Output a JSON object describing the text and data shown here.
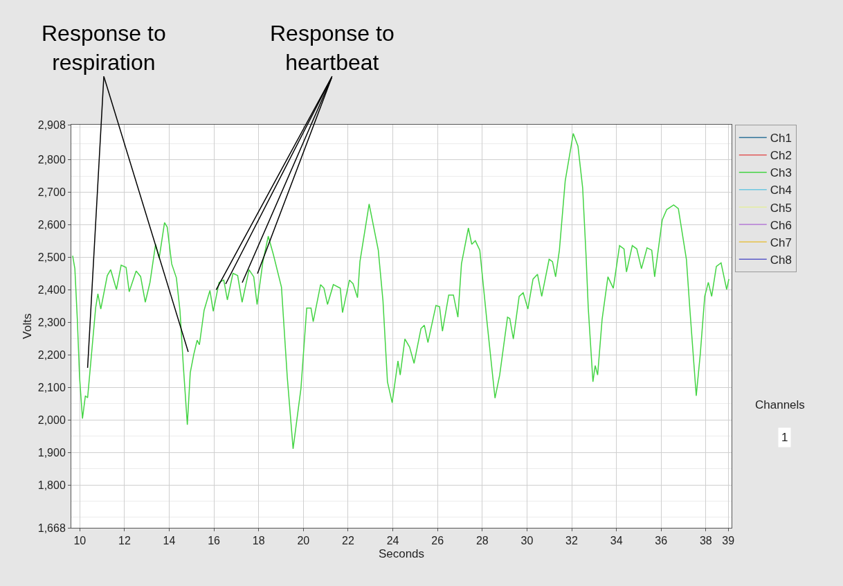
{
  "chart_data": {
    "type": "line",
    "xlabel": "Seconds",
    "ylabel": "Volts",
    "xlim": [
      9.62,
      39.15
    ],
    "xticks": [
      10,
      12,
      14,
      16,
      18,
      20,
      22,
      24,
      26,
      28,
      30,
      32,
      34,
      36,
      38,
      39
    ],
    "ylim": [
      1668,
      2908
    ],
    "yticks": [
      {
        "value": 1668,
        "label": "1,668"
      },
      {
        "value": 1800,
        "label": "1,800"
      },
      {
        "value": 1900,
        "label": "1,900"
      },
      {
        "value": 2000,
        "label": "2,000"
      },
      {
        "value": 2100,
        "label": "2,100"
      },
      {
        "value": 2200,
        "label": "2,200"
      },
      {
        "value": 2300,
        "label": "2,300"
      },
      {
        "value": 2400,
        "label": "2,400"
      },
      {
        "value": 2500,
        "label": "2,500"
      },
      {
        "value": 2600,
        "label": "2,600"
      },
      {
        "value": 2700,
        "label": "2,700"
      },
      {
        "value": 2800,
        "label": "2,800"
      },
      {
        "value": 2908,
        "label": "2,908"
      }
    ],
    "grid": true,
    "legend": "top right",
    "marker": "none",
    "line_style": "solid",
    "x": [
      9.68,
      9.78,
      9.89,
      9.99,
      10.12,
      10.25,
      10.35,
      10.71,
      10.81,
      10.94,
      11.23,
      11.38,
      11.64,
      11.85,
      12.07,
      12.21,
      12.52,
      12.72,
      12.93,
      13.14,
      13.39,
      13.55,
      13.79,
      13.91,
      14.11,
      14.32,
      14.48,
      14.63,
      14.81,
      14.94,
      15.1,
      15.25,
      15.35,
      15.56,
      15.82,
      15.97,
      16.23,
      16.44,
      16.6,
      16.85,
      17.06,
      17.26,
      17.57,
      17.78,
      17.93,
      18.19,
      18.43,
      18.66,
      19.02,
      19.28,
      19.54,
      19.89,
      20.15,
      20.34,
      20.44,
      20.77,
      20.92,
      21.08,
      21.34,
      21.65,
      21.75,
      22.06,
      22.22,
      22.42,
      22.53,
      22.94,
      23.35,
      23.56,
      23.76,
      23.97,
      24.23,
      24.33,
      24.54,
      24.75,
      24.95,
      25.26,
      25.41,
      25.57,
      25.93,
      26.09,
      26.22,
      26.5,
      26.71,
      26.91,
      27.07,
      27.38,
      27.53,
      27.69,
      27.89,
      28.2,
      28.57,
      28.78,
      29.13,
      29.23,
      29.39,
      29.65,
      29.83,
      30.04,
      30.27,
      30.47,
      30.66,
      30.99,
      31.14,
      31.28,
      31.45,
      31.71,
      32.07,
      32.28,
      32.49,
      32.64,
      32.74,
      32.95,
      33.05,
      33.16,
      33.36,
      33.62,
      33.86,
      34.14,
      34.34,
      34.45,
      34.71,
      34.91,
      35.12,
      35.37,
      35.58,
      35.71,
      36.05,
      36.25,
      36.56,
      36.77,
      37.13,
      37.28,
      37.57,
      37.75,
      37.95,
      38.11,
      38.26,
      38.47,
      38.68,
      38.93,
      39.03
    ],
    "series": [
      {
        "name": "Ch1",
        "color": "#2a6f97",
        "values": [
          null,
          null,
          null,
          null,
          null,
          null,
          null,
          null,
          null,
          null,
          null,
          null,
          null,
          null,
          null,
          null,
          null,
          null,
          null,
          null,
          null,
          null,
          null,
          null,
          null,
          null,
          null,
          null,
          null,
          null,
          null,
          null,
          null,
          null,
          null,
          null,
          null,
          null,
          null,
          null,
          null,
          null,
          null,
          null,
          null,
          null,
          null,
          null,
          null,
          null,
          null,
          null,
          null,
          null,
          null,
          null,
          null,
          null,
          null,
          null,
          null,
          null,
          null,
          null,
          null,
          null,
          null,
          null,
          null,
          null,
          null,
          null,
          null,
          null,
          null,
          null,
          null,
          null,
          null,
          null,
          null,
          null,
          null,
          null,
          null,
          null,
          null,
          null,
          null,
          null,
          null,
          null,
          null,
          null,
          null,
          null,
          null,
          null,
          null,
          null,
          null,
          null,
          null,
          null,
          null,
          null,
          null,
          null,
          null,
          null,
          null,
          null,
          null,
          null,
          null,
          null,
          null,
          null,
          null,
          null,
          null,
          null,
          null,
          null,
          null,
          null,
          null,
          null,
          null,
          null,
          null,
          null,
          null,
          null,
          null,
          null,
          null,
          null,
          null,
          null,
          null
        ]
      },
      {
        "name": "Ch2",
        "color": "#e05a5a",
        "values": [
          null,
          null,
          null,
          null,
          null,
          null,
          null,
          null,
          null,
          null,
          null,
          null,
          null,
          null,
          null,
          null,
          null,
          null,
          null,
          null,
          null,
          null,
          null,
          null,
          null,
          null,
          null,
          null,
          null,
          null,
          null,
          null,
          null,
          null,
          null,
          null,
          null,
          null,
          null,
          null,
          null,
          null,
          null,
          null,
          null,
          null,
          null,
          null,
          null,
          null,
          null,
          null,
          null,
          null,
          null,
          null,
          null,
          null,
          null,
          null,
          null,
          null,
          null,
          null,
          null,
          null,
          null,
          null,
          null,
          null,
          null,
          null,
          null,
          null,
          null,
          null,
          null,
          null,
          null,
          null,
          null,
          null,
          null,
          null,
          null,
          null,
          null,
          null,
          null,
          null,
          null,
          null,
          null,
          null,
          null,
          null,
          null,
          null,
          null,
          null,
          null,
          null,
          null,
          null,
          null,
          null,
          null,
          null,
          null,
          null,
          null,
          null,
          null,
          null,
          null,
          null,
          null,
          null,
          null,
          null,
          null,
          null,
          null,
          null,
          null,
          null,
          null,
          null,
          null,
          null,
          null,
          null,
          null,
          null,
          null,
          null,
          null,
          null,
          null,
          null,
          null
        ]
      },
      {
        "name": "Ch3",
        "color": "#44d444",
        "values": [
          2505,
          2465,
          2309,
          2132,
          2004,
          2074,
          2068,
          2345,
          2388,
          2341,
          2444,
          2462,
          2401,
          2476,
          2469,
          2394,
          2458,
          2441,
          2362,
          2423,
          2540,
          2497,
          2607,
          2593,
          2480,
          2437,
          2337,
          2167,
          1985,
          2145,
          2202,
          2245,
          2231,
          2337,
          2398,
          2334,
          2423,
          2430,
          2369,
          2451,
          2444,
          2362,
          2462,
          2440,
          2355,
          2487,
          2565,
          2508,
          2408,
          2131,
          1911,
          2096,
          2344,
          2344,
          2302,
          2416,
          2405,
          2355,
          2416,
          2405,
          2330,
          2430,
          2419,
          2376,
          2487,
          2664,
          2522,
          2366,
          2117,
          2053,
          2181,
          2138,
          2249,
          2224,
          2174,
          2281,
          2291,
          2238,
          2352,
          2348,
          2273,
          2384,
          2384,
          2316,
          2480,
          2590,
          2540,
          2551,
          2522,
          2309,
          2067,
          2138,
          2316,
          2312,
          2249,
          2380,
          2391,
          2341,
          2433,
          2448,
          2380,
          2494,
          2487,
          2440,
          2522,
          2735,
          2881,
          2842,
          2714,
          2508,
          2345,
          2117,
          2167,
          2138,
          2309,
          2440,
          2405,
          2536,
          2526,
          2455,
          2536,
          2526,
          2465,
          2529,
          2522,
          2440,
          2615,
          2647,
          2661,
          2650,
          2494,
          2345,
          2074,
          2202,
          2380,
          2423,
          2380,
          2472,
          2483,
          2401,
          2433
        ]
      },
      {
        "name": "Ch4",
        "color": "#6cc6e0",
        "values": [
          null,
          null,
          null,
          null,
          null,
          null,
          null,
          null,
          null,
          null,
          null,
          null,
          null,
          null,
          null,
          null,
          null,
          null,
          null,
          null,
          null,
          null,
          null,
          null,
          null,
          null,
          null,
          null,
          null,
          null,
          null,
          null,
          null,
          null,
          null,
          null,
          null,
          null,
          null,
          null,
          null,
          null,
          null,
          null,
          null,
          null,
          null,
          null,
          null,
          null,
          null,
          null,
          null,
          null,
          null,
          null,
          null,
          null,
          null,
          null,
          null,
          null,
          null,
          null,
          null,
          null,
          null,
          null,
          null,
          null,
          null,
          null,
          null,
          null,
          null,
          null,
          null,
          null,
          null,
          null,
          null,
          null,
          null,
          null,
          null,
          null,
          null,
          null,
          null,
          null,
          null,
          null,
          null,
          null,
          null,
          null,
          null,
          null,
          null,
          null,
          null,
          null,
          null,
          null,
          null,
          null,
          null,
          null,
          null,
          null,
          null,
          null,
          null,
          null,
          null,
          null,
          null,
          null,
          null,
          null,
          null,
          null,
          null,
          null,
          null,
          null,
          null,
          null,
          null,
          null,
          null,
          null,
          null,
          null,
          null,
          null,
          null,
          null,
          null,
          null,
          null
        ]
      },
      {
        "name": "Ch5",
        "color": "#e4eea0",
        "values": [
          null,
          null,
          null,
          null,
          null,
          null,
          null,
          null,
          null,
          null,
          null,
          null,
          null,
          null,
          null,
          null,
          null,
          null,
          null,
          null,
          null,
          null,
          null,
          null,
          null,
          null,
          null,
          null,
          null,
          null,
          null,
          null,
          null,
          null,
          null,
          null,
          null,
          null,
          null,
          null,
          null,
          null,
          null,
          null,
          null,
          null,
          null,
          null,
          null,
          null,
          null,
          null,
          null,
          null,
          null,
          null,
          null,
          null,
          null,
          null,
          null,
          null,
          null,
          null,
          null,
          null,
          null,
          null,
          null,
          null,
          null,
          null,
          null,
          null,
          null,
          null,
          null,
          null,
          null,
          null,
          null,
          null,
          null,
          null,
          null,
          null,
          null,
          null,
          null,
          null,
          null,
          null,
          null,
          null,
          null,
          null,
          null,
          null,
          null,
          null,
          null,
          null,
          null,
          null,
          null,
          null,
          null,
          null,
          null,
          null,
          null,
          null,
          null,
          null,
          null,
          null,
          null,
          null,
          null,
          null,
          null,
          null,
          null,
          null,
          null,
          null,
          null,
          null,
          null,
          null,
          null,
          null,
          null,
          null,
          null,
          null,
          null,
          null,
          null,
          null,
          null
        ]
      },
      {
        "name": "Ch6",
        "color": "#b57ad6",
        "values": [
          null,
          null,
          null,
          null,
          null,
          null,
          null,
          null,
          null,
          null,
          null,
          null,
          null,
          null,
          null,
          null,
          null,
          null,
          null,
          null,
          null,
          null,
          null,
          null,
          null,
          null,
          null,
          null,
          null,
          null,
          null,
          null,
          null,
          null,
          null,
          null,
          null,
          null,
          null,
          null,
          null,
          null,
          null,
          null,
          null,
          null,
          null,
          null,
          null,
          null,
          null,
          null,
          null,
          null,
          null,
          null,
          null,
          null,
          null,
          null,
          null,
          null,
          null,
          null,
          null,
          null,
          null,
          null,
          null,
          null,
          null,
          null,
          null,
          null,
          null,
          null,
          null,
          null,
          null,
          null,
          null,
          null,
          null,
          null,
          null,
          null,
          null,
          null,
          null,
          null,
          null,
          null,
          null,
          null,
          null,
          null,
          null,
          null,
          null,
          null,
          null,
          null,
          null,
          null,
          null,
          null,
          null,
          null,
          null,
          null,
          null,
          null,
          null,
          null,
          null,
          null,
          null,
          null,
          null,
          null,
          null,
          null,
          null,
          null,
          null,
          null,
          null,
          null,
          null,
          null,
          null,
          null,
          null,
          null,
          null,
          null,
          null,
          null,
          null,
          null,
          null
        ]
      },
      {
        "name": "Ch7",
        "color": "#e6c24a",
        "values": [
          null,
          null,
          null,
          null,
          null,
          null,
          null,
          null,
          null,
          null,
          null,
          null,
          null,
          null,
          null,
          null,
          null,
          null,
          null,
          null,
          null,
          null,
          null,
          null,
          null,
          null,
          null,
          null,
          null,
          null,
          null,
          null,
          null,
          null,
          null,
          null,
          null,
          null,
          null,
          null,
          null,
          null,
          null,
          null,
          null,
          null,
          null,
          null,
          null,
          null,
          null,
          null,
          null,
          null,
          null,
          null,
          null,
          null,
          null,
          null,
          null,
          null,
          null,
          null,
          null,
          null,
          null,
          null,
          null,
          null,
          null,
          null,
          null,
          null,
          null,
          null,
          null,
          null,
          null,
          null,
          null,
          null,
          null,
          null,
          null,
          null,
          null,
          null,
          null,
          null,
          null,
          null,
          null,
          null,
          null,
          null,
          null,
          null,
          null,
          null,
          null,
          null,
          null,
          null,
          null,
          null,
          null,
          null,
          null,
          null,
          null,
          null,
          null,
          null,
          null,
          null,
          null,
          null,
          null,
          null,
          null,
          null,
          null,
          null,
          null,
          null,
          null,
          null,
          null,
          null,
          null,
          null,
          null,
          null,
          null,
          null,
          null,
          null,
          null,
          null,
          null
        ]
      },
      {
        "name": "Ch8",
        "color": "#5a5ac8",
        "values": [
          null,
          null,
          null,
          null,
          null,
          null,
          null,
          null,
          null,
          null,
          null,
          null,
          null,
          null,
          null,
          null,
          null,
          null,
          null,
          null,
          null,
          null,
          null,
          null,
          null,
          null,
          null,
          null,
          null,
          null,
          null,
          null,
          null,
          null,
          null,
          null,
          null,
          null,
          null,
          null,
          null,
          null,
          null,
          null,
          null,
          null,
          null,
          null,
          null,
          null,
          null,
          null,
          null,
          null,
          null,
          null,
          null,
          null,
          null,
          null,
          null,
          null,
          null,
          null,
          null,
          null,
          null,
          null,
          null,
          null,
          null,
          null,
          null,
          null,
          null,
          null,
          null,
          null,
          null,
          null,
          null,
          null,
          null,
          null,
          null,
          null,
          null,
          null,
          null,
          null,
          null,
          null,
          null,
          null,
          null,
          null,
          null,
          null,
          null,
          null,
          null,
          null,
          null,
          null,
          null,
          null,
          null,
          null,
          null,
          null,
          null,
          null,
          null,
          null,
          null,
          null,
          null,
          null,
          null,
          null,
          null,
          null,
          null,
          null,
          null,
          null,
          null,
          null,
          null,
          null,
          null,
          null,
          null,
          null,
          null,
          null,
          null,
          null,
          null,
          null,
          null
        ]
      }
    ],
    "annotations": [
      {
        "text": "Response to respiration",
        "x": 10.35,
        "y": 2160
      },
      {
        "text": "Response to heartbeat",
        "x": 16.1,
        "y": 2400
      },
      "Channels",
      "1"
    ]
  }
}
